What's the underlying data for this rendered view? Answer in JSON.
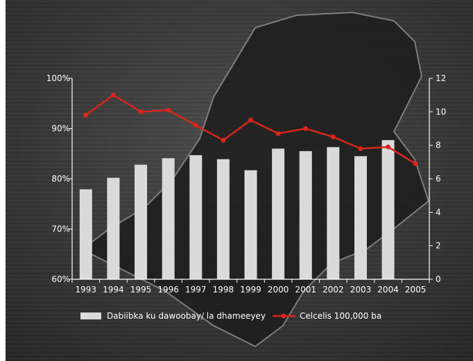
{
  "chart_data": {
    "type": "bar",
    "categories": [
      "1993",
      "1994",
      "1995",
      "1996",
      "1997",
      "1998",
      "1999",
      "2000",
      "2001",
      "2002",
      "2003",
      "2004",
      "2005"
    ],
    "series": [
      {
        "name": "Dabiibka ku dawoobay/ la dhameeyey",
        "type": "bar",
        "axis": "left",
        "values": [
          77.9,
          80.2,
          82.8,
          84.1,
          84.7,
          83.9,
          81.7,
          86.0,
          85.5,
          86.3,
          84.5,
          87.7,
          null
        ]
      },
      {
        "name": "Celcelis 100,000 ba",
        "type": "line",
        "axis": "right",
        "values": [
          9.8,
          11.0,
          10.0,
          10.1,
          9.2,
          8.3,
          9.5,
          8.7,
          9.0,
          8.5,
          7.8,
          7.9,
          6.9
        ]
      }
    ],
    "y_left": {
      "lim": [
        60,
        100
      ],
      "ticks": [
        "60%",
        "70%",
        "80%",
        "90%",
        "100%"
      ]
    },
    "y_right": {
      "lim": [
        0,
        12
      ],
      "ticks": [
        "0",
        "2",
        "4",
        "6",
        "8",
        "10",
        "12"
      ]
    },
    "title": "",
    "xlabel": "",
    "grid": false,
    "legend_position": "bottom",
    "colors": {
      "bar": "#dadada",
      "line": "#d9261c",
      "axis": "#ffffff",
      "background": "#3a3a3a"
    }
  }
}
